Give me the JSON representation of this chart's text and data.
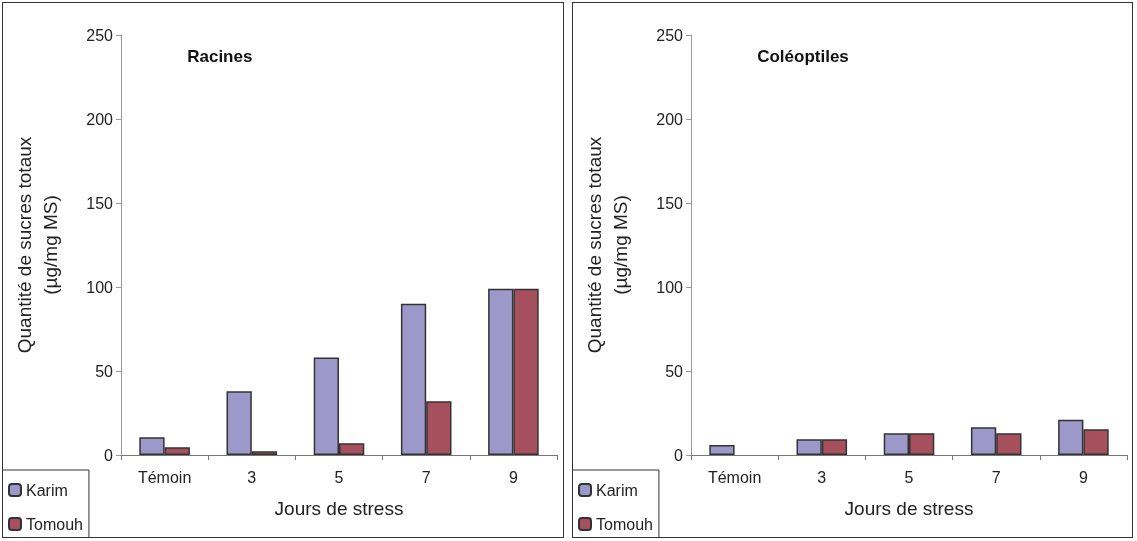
{
  "chart_data": [
    {
      "type": "bar",
      "title": "Racines",
      "xlabel": "Jours de stress",
      "ylabel": "Quantité de sucres totaux\n(µg/mg MS)",
      "categories": [
        "Témoin",
        "3",
        "5",
        "7",
        "9"
      ],
      "ylim": [
        0,
        250
      ],
      "yticks": [
        0,
        50,
        100,
        150,
        200,
        250
      ],
      "legend": "bottom left",
      "series": [
        {
          "name": "Karim",
          "color": "#9c98c9",
          "values": [
            10.5,
            38,
            58,
            90,
            99
          ]
        },
        {
          "name": "Tomouh",
          "color": "#a6505e",
          "values": [
            4.6,
            2.2,
            7,
            32,
            99
          ]
        }
      ]
    },
    {
      "type": "bar",
      "title": "Coléoptiles",
      "xlabel": "Jours de stress",
      "ylabel": "Quantité de sucres totaux\n(µg/mg MS)",
      "categories": [
        "Témoin",
        "3",
        "5",
        "7",
        "9"
      ],
      "ylim": [
        0,
        250
      ],
      "yticks": [
        0,
        50,
        100,
        150,
        200,
        250
      ],
      "legend": "bottom left",
      "series": [
        {
          "name": "Karim",
          "color": "#9c98c9",
          "values": [
            6,
            9.4,
            13,
            16.5,
            21
          ]
        },
        {
          "name": "Tomouh",
          "color": "#a6505e",
          "values": [
            null,
            9.4,
            13,
            13,
            15.3
          ]
        }
      ]
    }
  ]
}
